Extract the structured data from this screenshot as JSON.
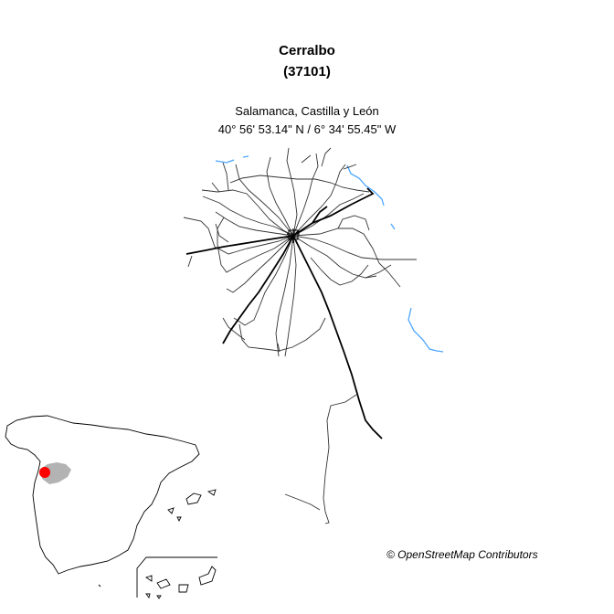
{
  "place": {
    "name": "Cerralbo",
    "code": "(37101)",
    "region": "Salamanca, Castilla y León",
    "coordinates": "40° 56' 53.14\" N / 6° 34' 55.45\" W"
  },
  "attribution": "© OpenStreetMap Contributors",
  "colors": {
    "road_minor": "#333333",
    "road_major": "#000000",
    "water": "#4da6ff",
    "province_fill": "#b3b3b3",
    "location_marker": "#ff0000",
    "coastline": "#000000"
  },
  "inset": {
    "country": "Spain",
    "marker_icon": "location-dot-icon"
  }
}
